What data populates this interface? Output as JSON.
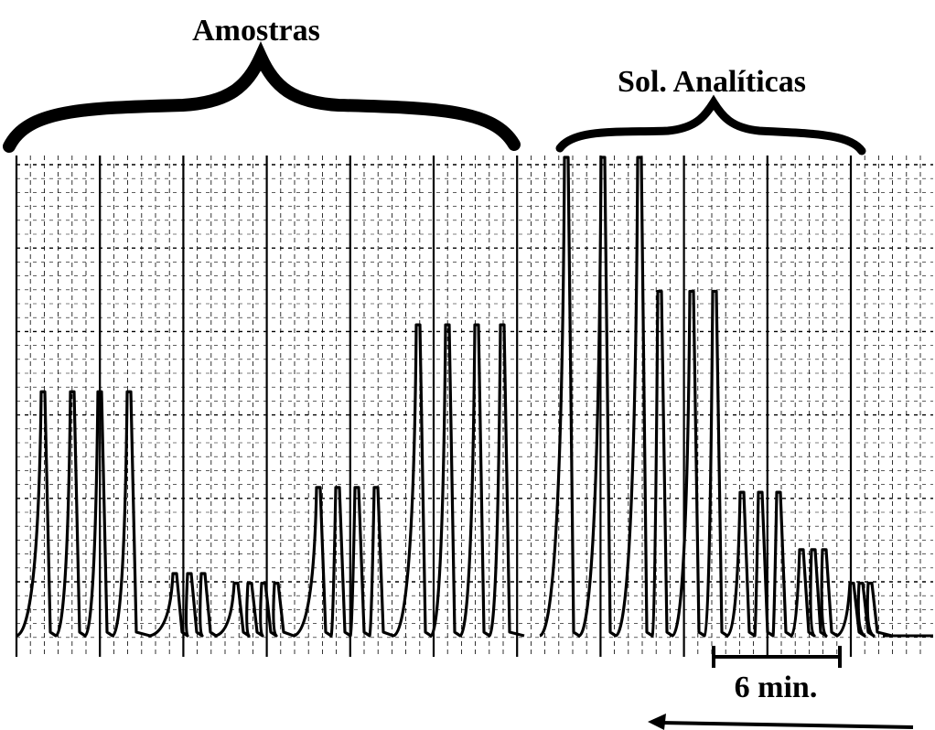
{
  "chart_data": {
    "type": "line",
    "title": "",
    "xlabel": "",
    "ylabel": "",
    "grid": true,
    "groups": [
      {
        "name": "Amostras"
      },
      {
        "name": "Sol. Analíticas"
      }
    ],
    "scale_bar": {
      "label": "6 min.",
      "duration_min": 6
    },
    "peak_height_scale": "relative (0-1)",
    "peaks": {
      "amostras": [
        0.51,
        0.51,
        0.51,
        0.51,
        0.13,
        0.13,
        0.13,
        0.11,
        0.11,
        0.11,
        0.11,
        0.31,
        0.31,
        0.31,
        0.31,
        0.65,
        0.65,
        0.65,
        0.65
      ],
      "sol_analiticas": [
        1.0,
        1.0,
        1.0,
        0.72,
        0.72,
        0.72,
        0.3,
        0.3,
        0.3,
        0.18,
        0.18,
        0.18,
        0.11,
        0.11,
        0.11
      ]
    }
  }
}
